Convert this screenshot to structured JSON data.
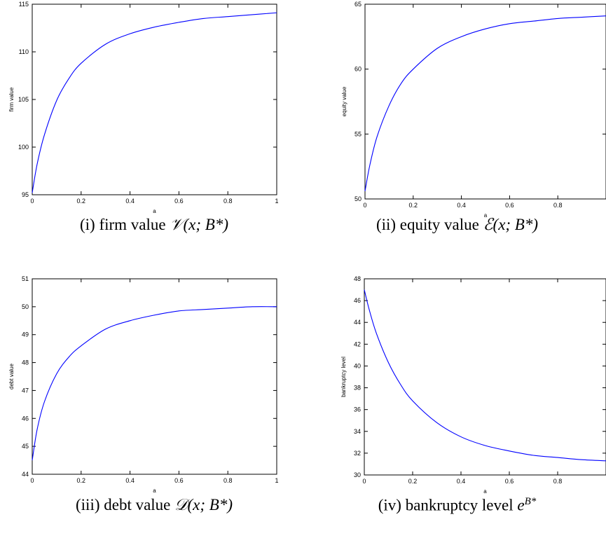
{
  "chart_data": [
    {
      "type": "line",
      "xlabel": "a",
      "ylabel": "firm value",
      "xlim": [
        0,
        1
      ],
      "ylim": [
        95,
        115
      ],
      "xticks": [
        0,
        0.2,
        0.4,
        0.6,
        0.8,
        1
      ],
      "xtick_labels": [
        "0",
        "0.2",
        "0.4",
        "0.6",
        "0.8",
        "1"
      ],
      "yticks": [
        95,
        100,
        105,
        110,
        115
      ],
      "ytick_labels": [
        "95",
        "100",
        "105",
        "110",
        "115"
      ],
      "grid": false,
      "series": [
        {
          "color": "#0000ff",
          "x": [
            0,
            0.02,
            0.05,
            0.1,
            0.15,
            0.2,
            0.3,
            0.4,
            0.5,
            0.6,
            0.7,
            0.8,
            0.9,
            1.0
          ],
          "y": [
            95.2,
            98.2,
            101.3,
            104.9,
            107.2,
            108.8,
            110.8,
            111.9,
            112.6,
            113.1,
            113.5,
            113.7,
            113.9,
            114.1
          ]
        }
      ],
      "caption": {
        "prefix": "(i) firm value ",
        "math": "𝒱(x; B*)"
      }
    },
    {
      "type": "line",
      "xlabel": "a",
      "ylabel": "equity value",
      "xlim": [
        0,
        1
      ],
      "ylim": [
        50,
        65
      ],
      "xticks": [
        0,
        0.2,
        0.4,
        0.6,
        0.8,
        1
      ],
      "xtick_labels": [
        "0",
        "0.2",
        "0.4",
        "0.6",
        "0.8",
        ""
      ],
      "yticks": [
        50,
        55,
        60,
        65
      ],
      "ytick_labels": [
        "50",
        "55",
        "60",
        "65"
      ],
      "grid": false,
      "series": [
        {
          "color": "#0000ff",
          "x": [
            0,
            0.02,
            0.05,
            0.1,
            0.15,
            0.2,
            0.3,
            0.4,
            0.5,
            0.6,
            0.7,
            0.8,
            0.9,
            1.0
          ],
          "y": [
            50.6,
            52.6,
            54.8,
            57.2,
            58.9,
            60.0,
            61.6,
            62.5,
            63.1,
            63.5,
            63.7,
            63.9,
            64.0,
            64.1
          ]
        }
      ],
      "caption": {
        "prefix": "(ii) equity value ",
        "math": "ℰ(x; B*)"
      }
    },
    {
      "type": "line",
      "xlabel": "a",
      "ylabel": "debt value",
      "xlim": [
        0,
        1
      ],
      "ylim": [
        44,
        51
      ],
      "xticks": [
        0,
        0.2,
        0.4,
        0.6,
        0.8,
        1
      ],
      "xtick_labels": [
        "0",
        "0.2",
        "0.4",
        "0.6",
        "0.8",
        "1"
      ],
      "yticks": [
        44,
        45,
        46,
        47,
        48,
        49,
        50,
        51
      ],
      "ytick_labels": [
        "44",
        "45",
        "46",
        "47",
        "48",
        "49",
        "50",
        "51"
      ],
      "grid": false,
      "series": [
        {
          "color": "#0000ff",
          "x": [
            0,
            0.02,
            0.05,
            0.1,
            0.15,
            0.2,
            0.3,
            0.4,
            0.5,
            0.6,
            0.7,
            0.8,
            0.9,
            1.0
          ],
          "y": [
            44.5,
            45.6,
            46.6,
            47.6,
            48.2,
            48.6,
            49.2,
            49.5,
            49.7,
            49.85,
            49.9,
            49.95,
            50.0,
            50.0
          ]
        }
      ],
      "caption": {
        "prefix": "(iii) debt value ",
        "math": "𝒟(x; B*)"
      }
    },
    {
      "type": "line",
      "xlabel": "a",
      "ylabel": "bankruptcy level",
      "xlim": [
        0,
        1
      ],
      "ylim": [
        30,
        48
      ],
      "xticks": [
        0,
        0.2,
        0.4,
        0.6,
        0.8,
        1
      ],
      "xtick_labels": [
        "0",
        "0.2",
        "0.4",
        "0.6",
        "0.8",
        ""
      ],
      "yticks": [
        30,
        32,
        34,
        36,
        38,
        40,
        42,
        44,
        46,
        48
      ],
      "ytick_labels": [
        "30",
        "32",
        "34",
        "36",
        "38",
        "40",
        "42",
        "44",
        "46",
        "48"
      ],
      "grid": false,
      "series": [
        {
          "color": "#0000ff",
          "x": [
            0,
            0.02,
            0.05,
            0.1,
            0.15,
            0.2,
            0.3,
            0.4,
            0.5,
            0.6,
            0.7,
            0.8,
            0.9,
            1.0
          ],
          "y": [
            47.0,
            45.2,
            43.0,
            40.3,
            38.3,
            36.8,
            34.8,
            33.5,
            32.7,
            32.2,
            31.8,
            31.6,
            31.4,
            31.3
          ]
        }
      ],
      "caption": {
        "prefix": "(iv) bankruptcy level ",
        "math": "e",
        "sup": "B*"
      }
    }
  ]
}
